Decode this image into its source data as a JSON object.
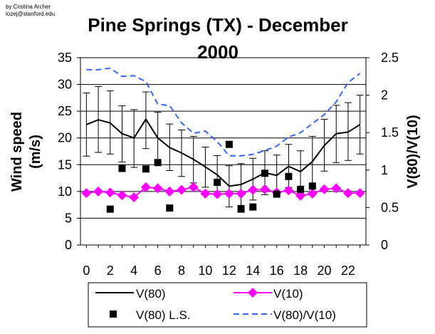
{
  "credit": {
    "line1": "by Cristina Archer",
    "line2": "lozej@stanford.edu"
  },
  "chart_data": {
    "type": "line",
    "title_line1": "Pine Springs (TX) - December",
    "title_line2": "2000",
    "ylabel_left": "Wind speed (m/s)",
    "ylabel_left_line1": "Wind speed",
    "ylabel_left_line2": "(m/s)",
    "ylabel_right": "V(80)/V(10)",
    "x": [
      0,
      1,
      2,
      3,
      4,
      5,
      6,
      7,
      8,
      9,
      10,
      11,
      12,
      13,
      14,
      15,
      16,
      17,
      18,
      19,
      20,
      21,
      22,
      23
    ],
    "xticks": [
      "0",
      "2",
      "4",
      "6",
      "8",
      "10",
      "12",
      "14",
      "16",
      "18",
      "20",
      "22"
    ],
    "xtick_values": [
      0,
      2,
      4,
      6,
      8,
      10,
      12,
      14,
      16,
      18,
      20,
      22
    ],
    "xlim": [
      -0.5,
      23.5
    ],
    "ylim_left": [
      0,
      35
    ],
    "yticks_left": [
      "0",
      "5",
      "10",
      "15",
      "20",
      "25",
      "30",
      "35"
    ],
    "ytick_values_left": [
      0,
      5,
      10,
      15,
      20,
      25,
      30,
      35
    ],
    "ylim_right": [
      0,
      2.5
    ],
    "yticks_right": [
      "0",
      "0.5",
      "1",
      "1.5",
      "2",
      "2.5"
    ],
    "ytick_values_right": [
      0,
      0.5,
      1,
      1.5,
      2,
      2.5
    ],
    "grid": "horizontal",
    "series": [
      {
        "name": "V(80)",
        "axis": "left",
        "style": "solid-black",
        "values": [
          22.5,
          23.4,
          22.8,
          20.8,
          20.0,
          23.5,
          20.0,
          18.2,
          17.2,
          16.0,
          14.6,
          13.1,
          11.0,
          11.3,
          12.3,
          13.5,
          13.0,
          14.7,
          13.7,
          15.6,
          18.6,
          20.8,
          21.1,
          22.5
        ],
        "error_low": [
          16.6,
          17.3,
          17.0,
          15.5,
          14.5,
          18.0,
          15.4,
          13.9,
          12.8,
          11.6,
          10.8,
          9.4,
          7.1,
          7.4,
          8.4,
          9.4,
          9.3,
          10.7,
          9.6,
          11.0,
          13.8,
          15.4,
          15.8,
          17.0
        ],
        "error_high": [
          28.4,
          29.6,
          28.8,
          26.0,
          25.3,
          28.6,
          24.8,
          22.6,
          21.5,
          20.3,
          18.3,
          16.7,
          14.8,
          15.2,
          16.2,
          17.6,
          16.8,
          18.8,
          17.6,
          20.3,
          23.5,
          26.1,
          26.6,
          28.0
        ]
      },
      {
        "name": "V(10)",
        "axis": "left",
        "style": "magenta-diamond",
        "values": [
          9.7,
          10.0,
          9.8,
          9.3,
          8.9,
          10.8,
          10.6,
          10.0,
          10.3,
          10.8,
          9.6,
          9.5,
          9.6,
          9.6,
          10.3,
          10.4,
          9.8,
          10.2,
          9.2,
          9.6,
          10.4,
          10.6,
          9.7,
          9.7
        ]
      },
      {
        "name": "V(80) L.S.",
        "axis": "left",
        "style": "black-square",
        "x": [
          2,
          3,
          5,
          6,
          7,
          11,
          12,
          13,
          14,
          15,
          16,
          17,
          18,
          19
        ],
        "values": [
          6.7,
          14.3,
          14.2,
          15.4,
          6.9,
          11.7,
          18.8,
          6.7,
          7.1,
          13.4,
          9.5,
          12.8,
          10.4,
          11.0
        ]
      },
      {
        "name": "V(80)/V(10)",
        "axis": "right",
        "style": "blue-dashed",
        "values": [
          2.34,
          2.34,
          2.36,
          2.25,
          2.26,
          2.18,
          1.88,
          1.86,
          1.63,
          1.49,
          1.52,
          1.38,
          1.19,
          1.19,
          1.21,
          1.26,
          1.32,
          1.44,
          1.5,
          1.62,
          1.74,
          1.91,
          2.17,
          2.29
        ]
      }
    ],
    "legend": {
      "position": "bottom",
      "entries": [
        "V(80)",
        "V(10)",
        "V(80) L.S.",
        "V(80)/V(10)"
      ]
    }
  },
  "colors": {
    "v80_line": "#000000",
    "v10_marker": "#ff00ff",
    "ls_marker": "#000000",
    "ratio_line": "#3366ff",
    "grid": "#000000",
    "background": "#ffffff"
  }
}
